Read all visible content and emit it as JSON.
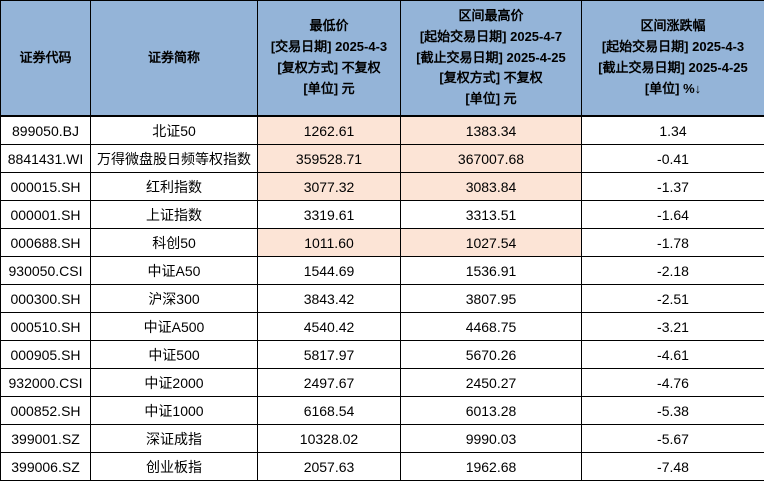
{
  "colors": {
    "header_bg": "#94B4D8",
    "highlight_bg": "#FCE4D6",
    "border": "#000000",
    "text": "#000000"
  },
  "chart_data": {
    "type": "table",
    "title": "",
    "sort_indicator": "↓",
    "columns": [
      "证券代码",
      "证券简称",
      "最低价\n[交易日期] 2025-4-3\n[复权方式] 不复权\n[单位] 元",
      "区间最高价\n[起始交易日期] 2025-4-7\n[截止交易日期] 2025-4-25\n[复权方式] 不复权\n[单位] 元",
      "区间涨跌幅\n[起始交易日期] 2025-4-3\n[截止交易日期] 2025-4-25\n[单位] %↓"
    ],
    "rows": [
      [
        "899050.BJ",
        "北证50",
        "1262.61",
        "1383.34",
        "1.34"
      ],
      [
        "8841431.WI",
        "万得微盘股日频等权指数",
        "359528.71",
        "367007.68",
        "-0.41"
      ],
      [
        "000015.SH",
        "红利指数",
        "3077.32",
        "3083.84",
        "-1.37"
      ],
      [
        "000001.SH",
        "上证指数",
        "3319.61",
        "3313.51",
        "-1.64"
      ],
      [
        "000688.SH",
        "科创50",
        "1011.60",
        "1027.54",
        "-1.78"
      ],
      [
        "930050.CSI",
        "中证A50",
        "1544.69",
        "1536.91",
        "-2.18"
      ],
      [
        "000300.SH",
        "沪深300",
        "3843.42",
        "3807.95",
        "-2.51"
      ],
      [
        "000510.SH",
        "中证A500",
        "4540.42",
        "4468.75",
        "-3.21"
      ],
      [
        "000905.SH",
        "中证500",
        "5817.97",
        "5670.26",
        "-4.61"
      ],
      [
        "932000.CSI",
        "中证2000",
        "2497.67",
        "2450.27",
        "-4.76"
      ],
      [
        "000852.SH",
        "中证1000",
        "6168.54",
        "6013.28",
        "-5.38"
      ],
      [
        "399001.SZ",
        "深证成指",
        "10328.02",
        "9990.03",
        "-5.67"
      ],
      [
        "399006.SZ",
        "创业板指",
        "2057.63",
        "1962.68",
        "-7.48"
      ]
    ],
    "highlighted_rows": [
      0,
      1,
      2,
      4
    ],
    "highlight_columns": [
      2,
      3
    ]
  }
}
